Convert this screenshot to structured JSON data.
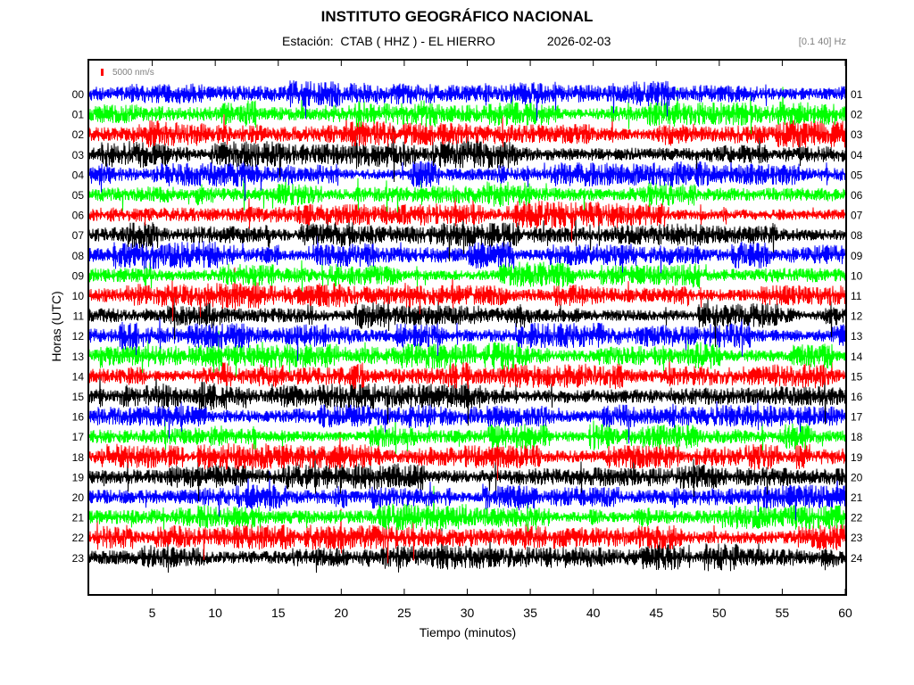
{
  "header": {
    "title": "INSTITUTO GEOGRÁFICO NACIONAL",
    "station_prefix": "Estación:",
    "station": "CTAB ( HHZ ) - EL HIERRO",
    "date": "2026-02-03",
    "filter": "[0.1 40] Hz"
  },
  "chart_data": {
    "type": "line",
    "title": "INSTITUTO GEOGRÁFICO NACIONAL",
    "xlabel": "Tiempo (minutos)",
    "ylabel": "Horas (UTC)",
    "xlim": [
      0,
      60
    ],
    "x_ticks": [
      "5",
      "10",
      "15",
      "20",
      "25",
      "30",
      "35",
      "40",
      "45",
      "50",
      "55",
      "60"
    ],
    "left_hour_labels": [
      "00",
      "01",
      "02",
      "03",
      "04",
      "05",
      "06",
      "07",
      "08",
      "09",
      "10",
      "11",
      "12",
      "13",
      "14",
      "15",
      "16",
      "17",
      "18",
      "19",
      "20",
      "21",
      "22",
      "23"
    ],
    "right_hour_labels": [
      "01",
      "02",
      "03",
      "04",
      "05",
      "06",
      "07",
      "08",
      "09",
      "10",
      "11",
      "12",
      "13",
      "14",
      "15",
      "16",
      "17",
      "18",
      "19",
      "20",
      "21",
      "22",
      "23",
      "24"
    ],
    "trace_colors": [
      "#0000ff",
      "#00ff00",
      "#ff0000",
      "#000000"
    ],
    "scale_bar": {
      "label": "5000 nm/s",
      "color": "#ff0000"
    },
    "grid": false,
    "legend": "none"
  }
}
